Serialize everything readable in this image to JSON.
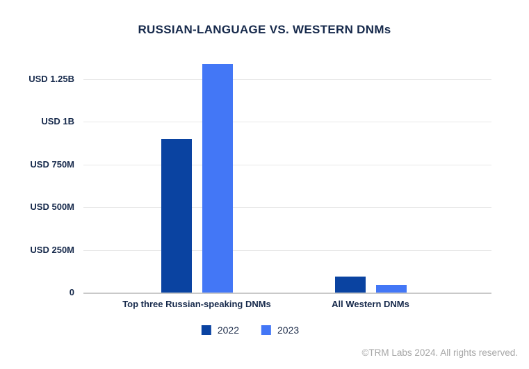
{
  "title": "RUSSIAN-LANGUAGE VS. WESTERN DNMs",
  "footer": "©TRM Labs 2024. All rights reserved.",
  "colors": {
    "series_2022": "#0A43A1",
    "series_2023": "#4377F6",
    "heading_text": "#16294B",
    "axis_text": "#16294B",
    "gridline": "#E8E8E8",
    "baseline": "#C9C9C9",
    "footer_text": "#A6A6A6"
  },
  "chart_data": {
    "type": "bar",
    "title": "RUSSIAN-LANGUAGE VS. WESTERN DNMs",
    "categories": [
      "Top three Russian-speaking DNMs",
      "All Western DNMs"
    ],
    "series": [
      {
        "name": "2022",
        "color": "#0A43A1",
        "values_usd_millions": [
          900,
          95
        ]
      },
      {
        "name": "2023",
        "color": "#4377F6",
        "values_usd_millions": [
          1340,
          45
        ]
      }
    ],
    "xlabel": "",
    "ylabel": "",
    "y_axis": {
      "tick_labels": [
        "0",
        "USD 250M",
        "USD 500M",
        "USD 750M",
        "USD 1B",
        "USD 1.25B"
      ],
      "tick_values_usd_millions": [
        0,
        250,
        500,
        750,
        1000,
        1250
      ],
      "ylim_usd_millions": [
        0,
        1340
      ]
    },
    "grid": true,
    "legend": [
      "2022",
      "2023"
    ],
    "legend_position": "bottom"
  }
}
